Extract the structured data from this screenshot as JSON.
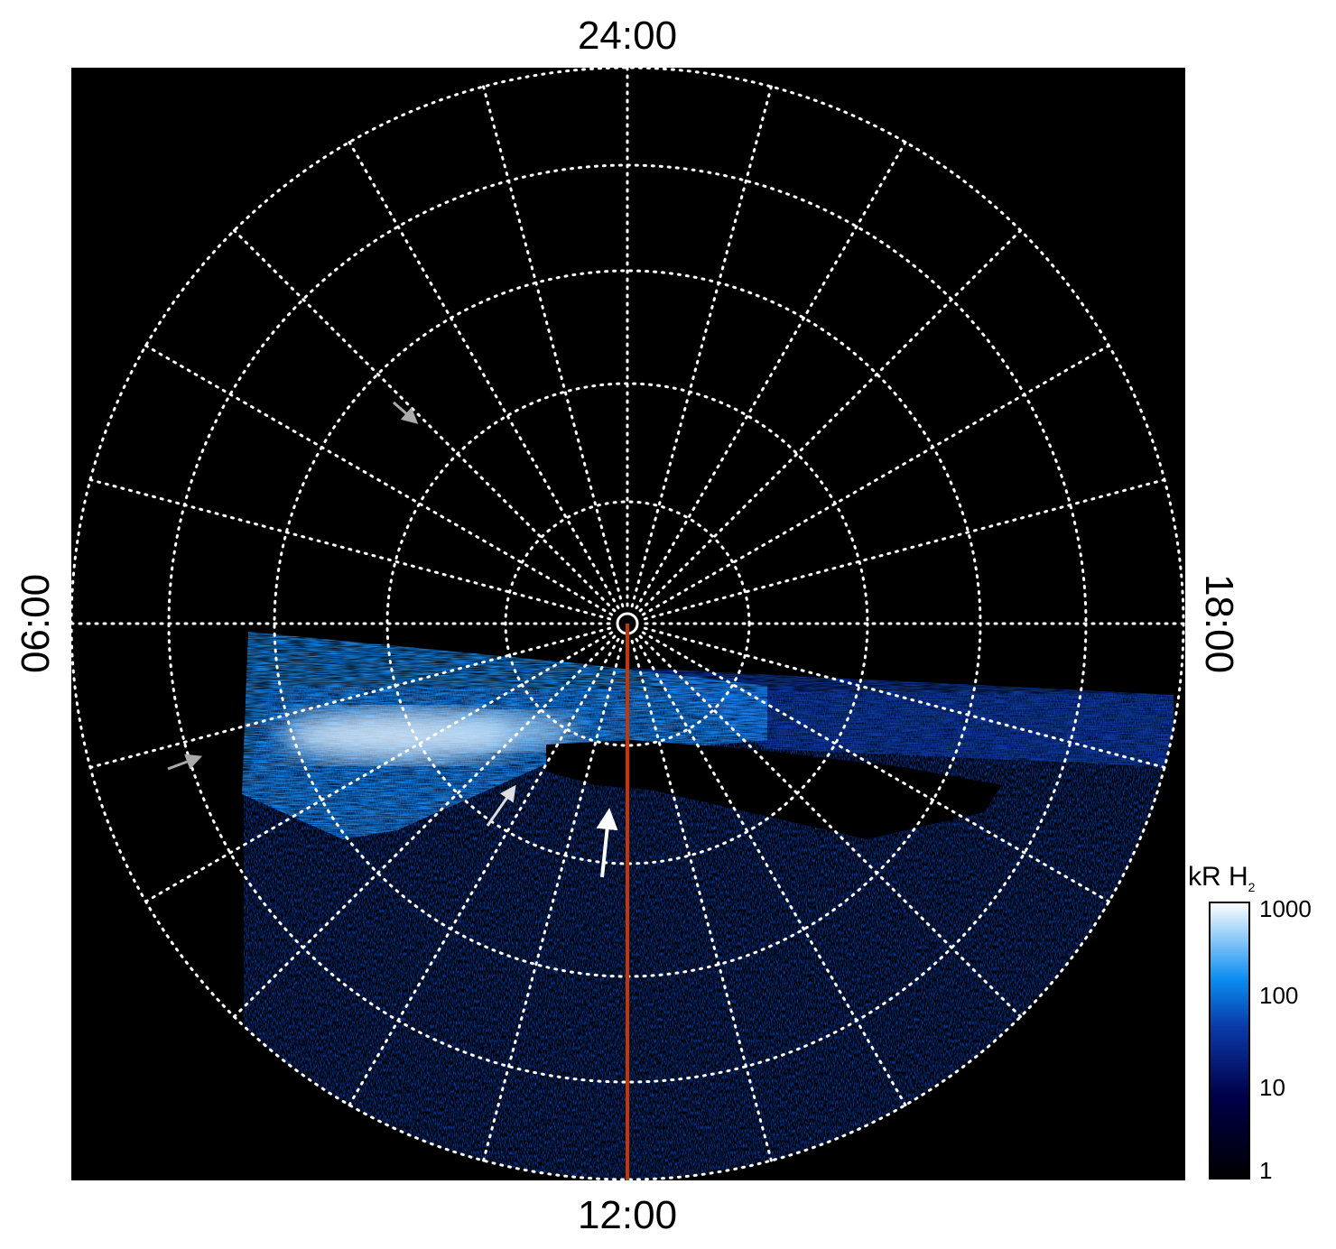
{
  "local_time_labels": {
    "top": "24:00",
    "bottom": "12:00",
    "left": "06:00",
    "right": "18:00"
  },
  "colorbar": {
    "unit": "kR H",
    "unit_subscript": "2",
    "ticks": [
      "1000",
      "100",
      "10",
      "1"
    ],
    "scale": "log",
    "range": [
      1,
      1000
    ],
    "colors": [
      "#000000",
      "#00004a",
      "#0a3aa8",
      "#0a8cf0",
      "#ffffff"
    ]
  },
  "grid": {
    "style": "dotted",
    "color": "#ffffff",
    "meridians_hours": 24
  },
  "colors": {
    "background": "#000000",
    "meridian_line": "#cc3300",
    "arrow_gray": "#aaaaaa",
    "arrow_white": "#ffffff"
  }
}
